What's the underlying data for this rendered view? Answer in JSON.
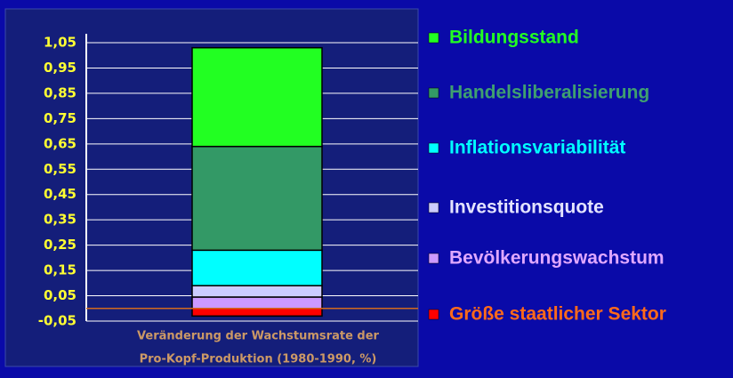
{
  "chart_data": {
    "type": "stacked_bar",
    "x_label": [
      "Veränderung der Wachstumsrate der",
      "Pro-Kopf-Produktion (1980-1990, %)"
    ],
    "categories": [
      null
    ],
    "series": [
      {
        "name": "Größe staatlicher Sektor",
        "color": "#ff0000",
        "text_color": "#ff6a1a",
        "values": [
          -0.03
        ]
      },
      {
        "name": "Bevölkerungswachstum",
        "color": "#cc99ff",
        "text_color": "#e0a8ff",
        "values": [
          0.045
        ]
      },
      {
        "name": "Investitionsquote",
        "color": "#ccccff",
        "text_color": "#e4e4ff",
        "values": [
          0.045
        ]
      },
      {
        "name": "Inflationsvariabilität",
        "color": "#00ffff",
        "text_color": "#00ffff",
        "values": [
          0.14
        ]
      },
      {
        "name": "Handelsliberalisierung",
        "color": "#339966",
        "text_color": "#3fa070",
        "values": [
          0.41
        ]
      },
      {
        "name": "Bildungsstand",
        "color": "#22ff22",
        "text_color": "#22ff22",
        "values": [
          0.39
        ]
      }
    ],
    "ylim": [
      -0.05,
      1.05
    ],
    "yticks": [
      {
        "value": -0.05,
        "label": "-0,05"
      },
      {
        "value": 0.05,
        "label": "0,05"
      },
      {
        "value": 0.15,
        "label": "0,15"
      },
      {
        "value": 0.25,
        "label": "0,25"
      },
      {
        "value": 0.35,
        "label": "0,35"
      },
      {
        "value": 0.45,
        "label": "0,45"
      },
      {
        "value": 0.55,
        "label": "0,55"
      },
      {
        "value": 0.65,
        "label": "0,65"
      },
      {
        "value": 0.75,
        "label": "0,75"
      },
      {
        "value": 0.85,
        "label": "0,85"
      },
      {
        "value": 0.95,
        "label": "0,95"
      },
      {
        "value": 1.05,
        "label": "1,05"
      }
    ],
    "grid": true,
    "zero_line_color": "#d2691e"
  }
}
